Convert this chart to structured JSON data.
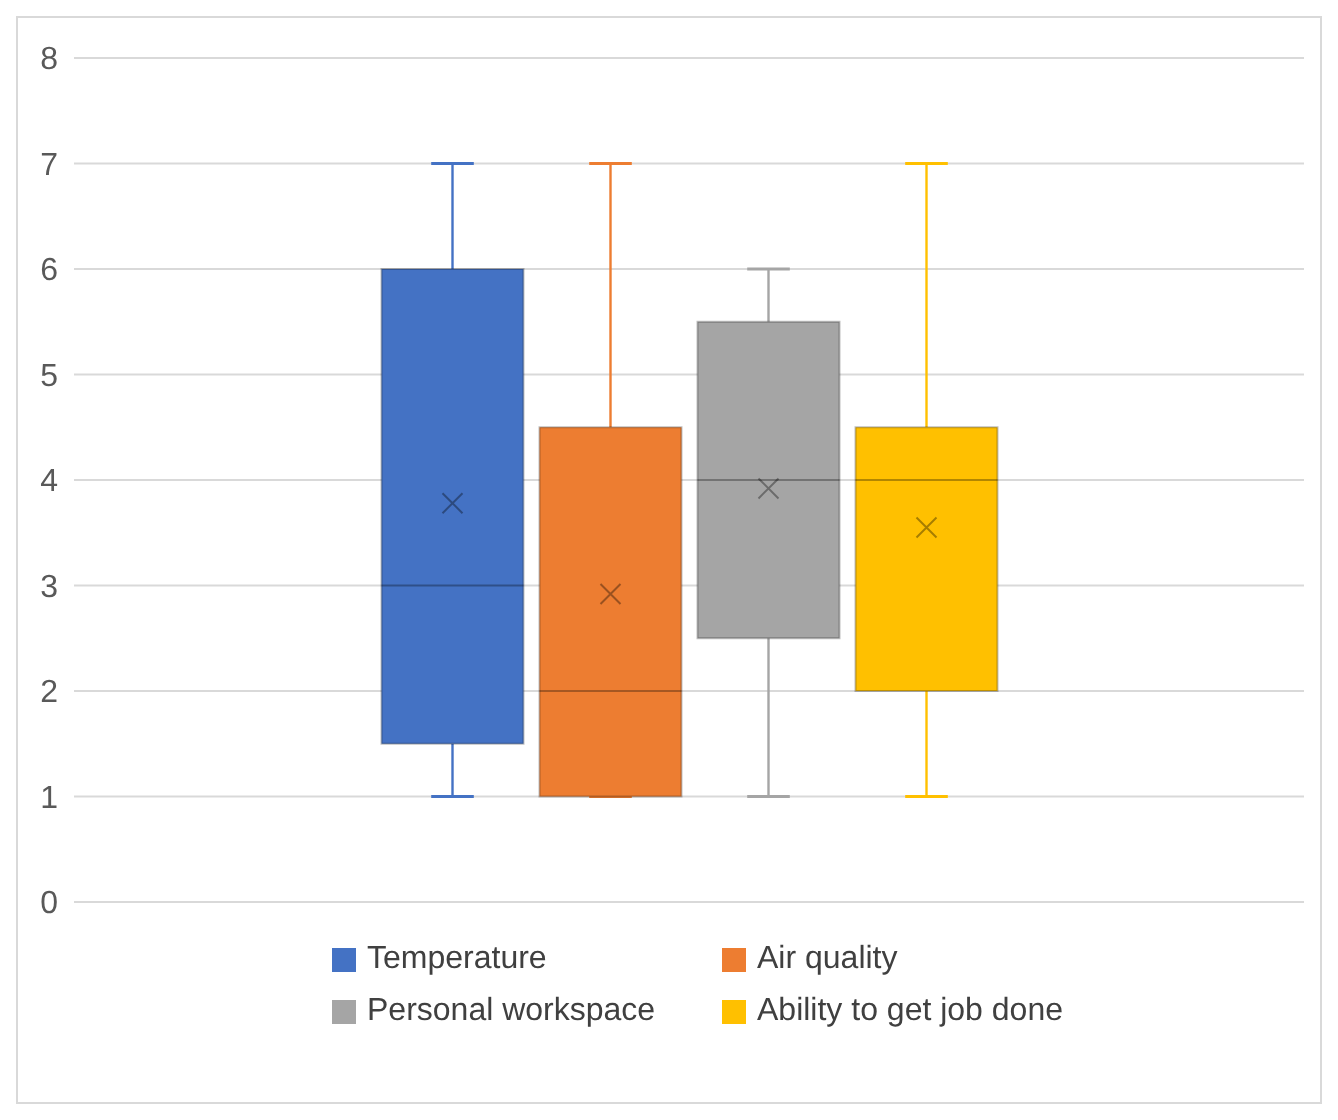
{
  "chart_data": {
    "type": "box",
    "categories": [
      null
    ],
    "series": [
      {
        "name": "Temperature",
        "color": "#4472c4",
        "boxes": [
          {
            "low": 1,
            "q1": 1.5,
            "median": 3,
            "q3": 6,
            "high": 7,
            "mean": 3.78
          }
        ]
      },
      {
        "name": "Air quality",
        "color": "#ed7d31",
        "boxes": [
          {
            "low": 1,
            "q1": 1,
            "median": 2,
            "q3": 4.5,
            "high": 7,
            "mean": 2.92
          }
        ]
      },
      {
        "name": "Personal workspace",
        "color": "#a5a5a5",
        "boxes": [
          {
            "low": 1,
            "q1": 2.5,
            "median": 4,
            "q3": 5.5,
            "high": 6,
            "mean": 3.92
          }
        ]
      },
      {
        "name": "Ability to get job done",
        "color": "#ffc000",
        "boxes": [
          {
            "low": 1,
            "q1": 2,
            "median": 4,
            "q3": 4.5,
            "high": 7,
            "mean": 3.55
          }
        ]
      }
    ],
    "ylim": [
      0,
      8
    ],
    "yticks": [
      0,
      1,
      2,
      3,
      4,
      5,
      6,
      7,
      8
    ],
    "grid": "y",
    "legend": "bottom",
    "marker": "cross"
  }
}
